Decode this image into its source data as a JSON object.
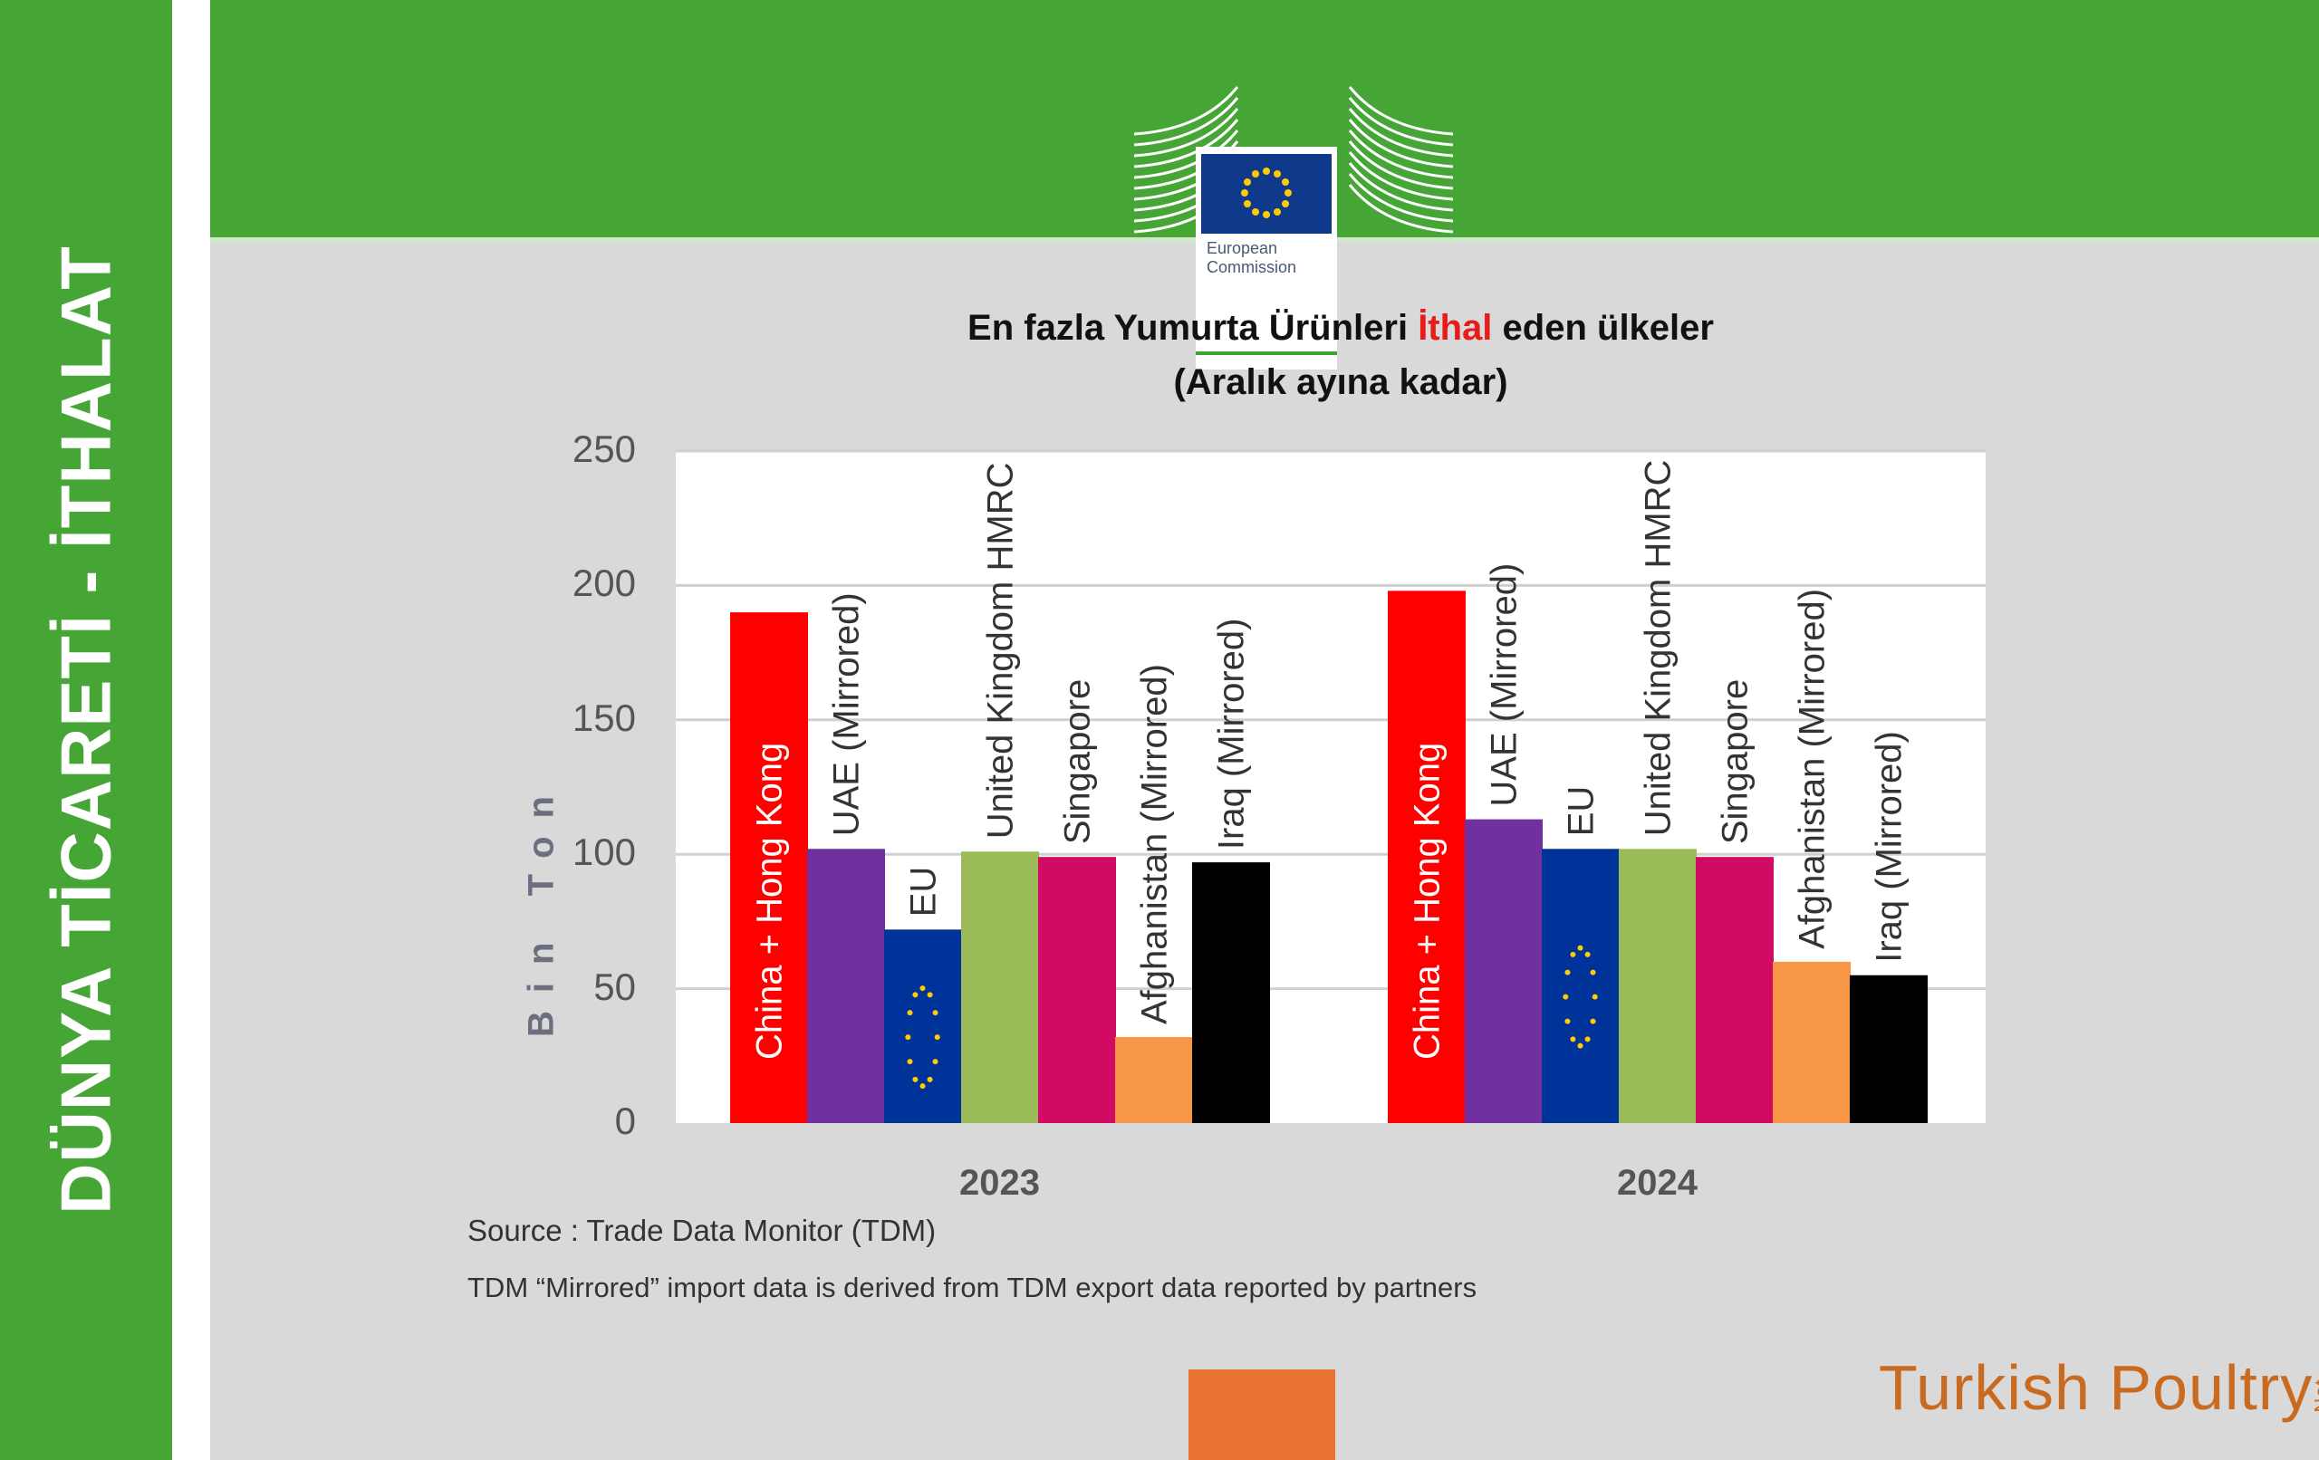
{
  "sidebar": {
    "title": "DÜNYA TİCARETİ - İTHALAT"
  },
  "logo": {
    "line1": "European",
    "line2": "Commission"
  },
  "header": {
    "title_part1": "En fazla Yumurta Ürünleri ",
    "title_highlight": "İthal",
    "title_part2": " eden ülkeler",
    "subtitle": "(Aralık ayına kadar)"
  },
  "chart_data": {
    "type": "bar",
    "categories": [
      "2023",
      "2024"
    ],
    "ylabel": "Bin Ton",
    "ylim": [
      0,
      250
    ],
    "yticks": [
      "0",
      "50",
      "100",
      "150",
      "200",
      "250"
    ],
    "grid": true,
    "series": [
      {
        "name": "China + Hong Kong",
        "color": "#ff0000",
        "values": [
          190,
          198
        ]
      },
      {
        "name": "UAE (Mirrored)",
        "color": "#7030a0",
        "values": [
          102,
          113
        ]
      },
      {
        "name": "EU",
        "color": "#003399",
        "values": [
          72,
          102
        ]
      },
      {
        "name": "United Kingdom HMRC",
        "color": "#9bbb59",
        "values": [
          101,
          102
        ]
      },
      {
        "name": "Singapore",
        "color": "#d10a63",
        "values": [
          99,
          99
        ]
      },
      {
        "name": "Afghanistan (Mirrored)",
        "color": "#f79646",
        "values": [
          32,
          60
        ]
      },
      {
        "name": "Iraq (Mirrored)",
        "color": "#000000",
        "values": [
          97,
          55
        ]
      }
    ]
  },
  "footer": {
    "source": "Source : Trade Data Monitor (TDM)",
    "note": "TDM “Mirrored” import data is derived from TDM export data reported by partners",
    "brand": "Turkish Poultry",
    "brand_suffix": "Net"
  }
}
